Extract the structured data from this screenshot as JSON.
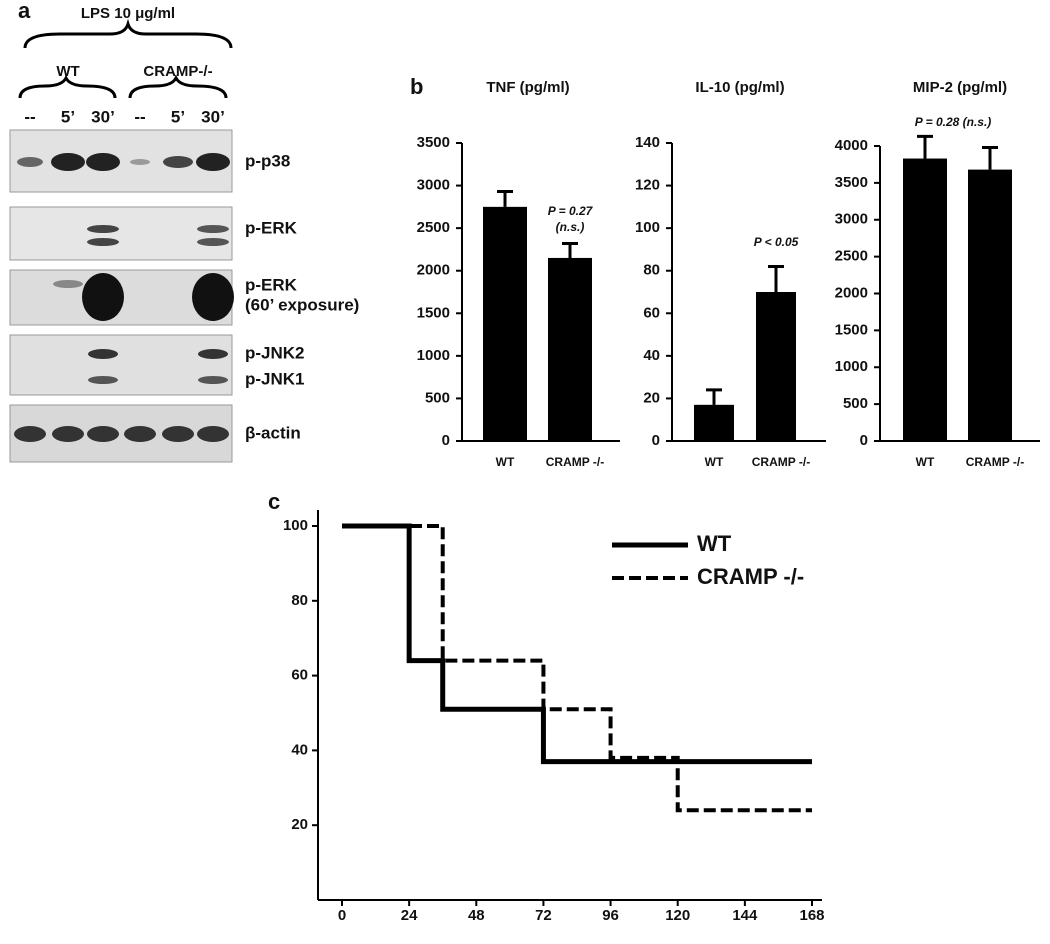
{
  "blot": {
    "panel": "a",
    "treatment": "LPS 10 μg/ml",
    "groups": [
      "WT",
      "CRAMP-/-"
    ],
    "lanes": [
      "--",
      "5’",
      "30’",
      "--",
      "5’",
      "30’"
    ],
    "rows": [
      [
        "p-p38"
      ],
      [
        "p-ERK"
      ],
      [
        "p-ERK",
        "(60’ exposure)"
      ],
      [
        "p-JNK2",
        "p-JNK1"
      ],
      [
        "β-actin"
      ]
    ]
  },
  "chart_data": [
    {
      "type": "bar",
      "panel": "b",
      "title": "TNF    (pg/ml)",
      "categories": [
        "WT",
        "CRAMP -/-"
      ],
      "values": [
        2750,
        2150
      ],
      "errors": [
        180,
        170
      ],
      "color": "#000000",
      "ylim": [
        0,
        3500
      ],
      "yticks": [
        0,
        500,
        1000,
        1500,
        2000,
        2500,
        3000,
        3500
      ],
      "annotations": [
        "P = 0.27",
        "(n.s.)"
      ]
    },
    {
      "type": "bar",
      "title": "IL-10 (pg/ml)",
      "categories": [
        "WT",
        "CRAMP -/-"
      ],
      "values": [
        17,
        70
      ],
      "errors": [
        7,
        12
      ],
      "color": "#000000",
      "ylim": [
        0,
        140
      ],
      "yticks": [
        0,
        20,
        40,
        60,
        80,
        100,
        120,
        140
      ],
      "annotations": [
        "P < 0.05"
      ]
    },
    {
      "type": "bar",
      "title": "MIP-2 (pg/ml)",
      "categories": [
        "WT",
        "CRAMP -/-"
      ],
      "values": [
        3830,
        3680
      ],
      "errors": [
        300,
        300
      ],
      "color": "#000000",
      "ylim": [
        0,
        4000
      ],
      "yticks": [
        0,
        500,
        1000,
        1500,
        2000,
        2500,
        3000,
        3500,
        4000
      ],
      "annotations": [
        "P = 0.28 (n.s.)"
      ]
    },
    {
      "type": "step",
      "panel": "c",
      "series": [
        {
          "name": "WT",
          "color": "#000000",
          "dashed": false,
          "x": [
            0,
            24,
            36,
            72,
            168
          ],
          "values": [
            100,
            64,
            51,
            37,
            37
          ]
        },
        {
          "name": "CRAMP -/-",
          "color": "#000000",
          "dashed": true,
          "x": [
            0,
            36,
            72,
            96,
            120,
            168
          ],
          "values": [
            100,
            64,
            51,
            38,
            24,
            24
          ]
        }
      ],
      "xlim": [
        0,
        168
      ],
      "xticks": [
        0,
        24,
        48,
        72,
        96,
        120,
        144,
        168
      ],
      "ylim": [
        0,
        100
      ],
      "yticks": [
        20,
        40,
        60,
        80,
        100
      ]
    }
  ]
}
